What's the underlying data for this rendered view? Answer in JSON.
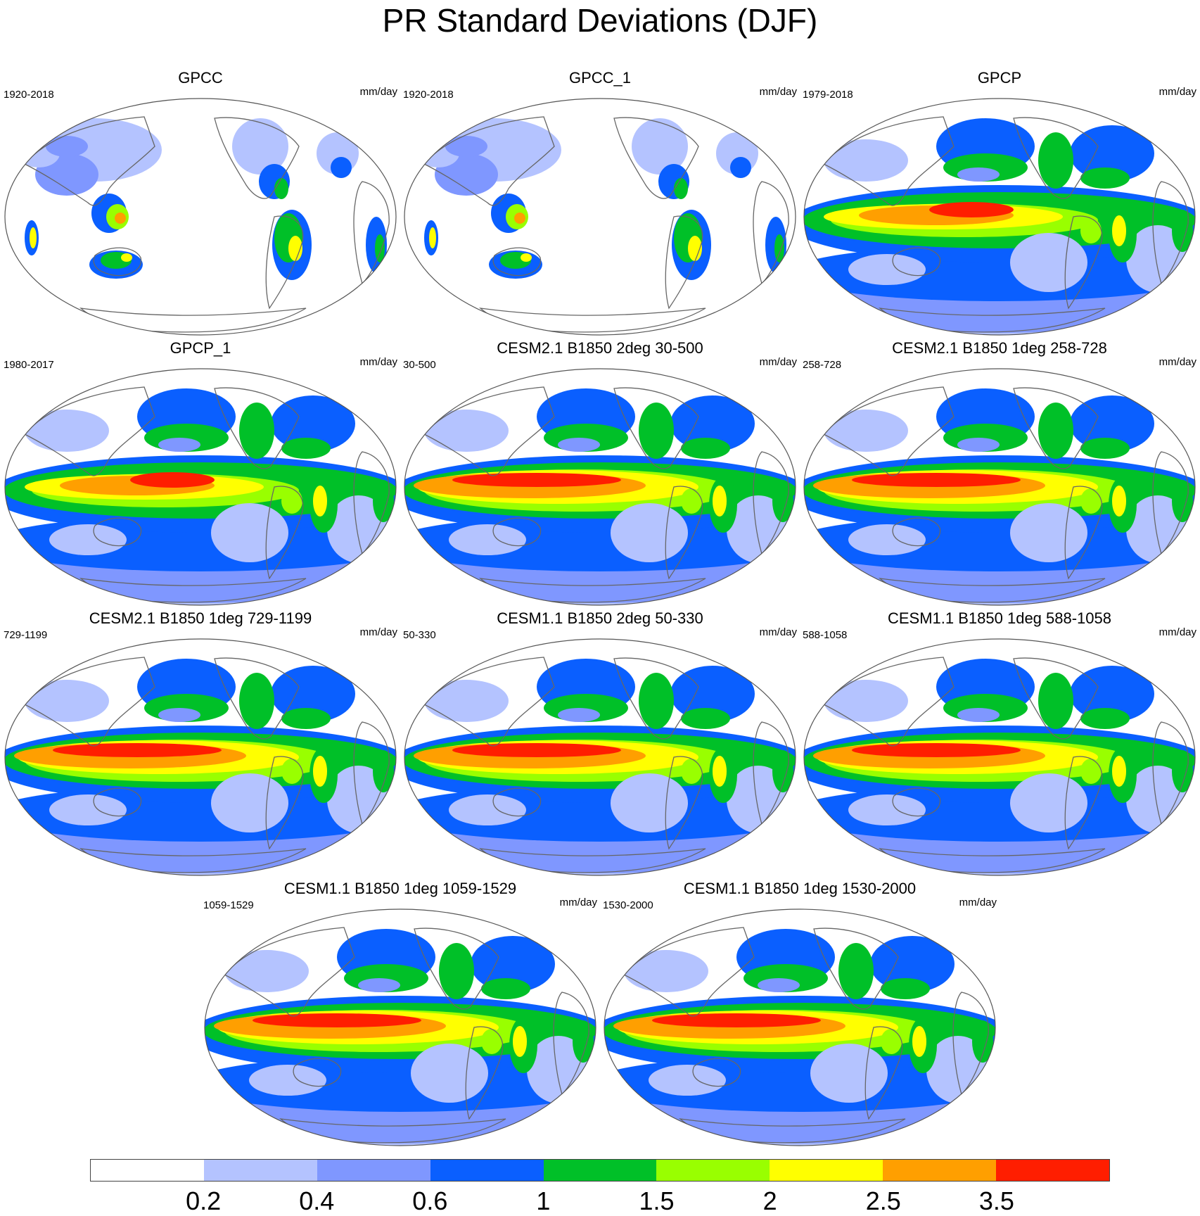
{
  "title": "PR Standard Deviations (DJF)",
  "units": "mm/day",
  "colorbar": {
    "colors": [
      "#ffffff",
      "#b4c3ff",
      "#7f97ff",
      "#0a5fff",
      "#00c028",
      "#99ff00",
      "#ffff00",
      "#ff9f00",
      "#ff1e00"
    ],
    "labels": [
      "0.2",
      "0.4",
      "0.6",
      "1",
      "1.5",
      "2",
      "2.5",
      "3.5"
    ]
  },
  "panels": [
    {
      "title": "GPCC",
      "period": "1920-2018",
      "kind": "land"
    },
    {
      "title": "GPCC_1",
      "period": "1920-2018",
      "kind": "land"
    },
    {
      "title": "GPCP",
      "period": "1979-2018",
      "kind": "obs"
    },
    {
      "title": "GPCP_1",
      "period": "1980-2017",
      "kind": "obs"
    },
    {
      "title": "CESM2.1 B1850 2deg 30-500",
      "period": "30-500",
      "kind": "model"
    },
    {
      "title": "CESM2.1 B1850 1deg 258-728",
      "period": "258-728",
      "kind": "model"
    },
    {
      "title": "CESM2.1 B1850 1deg 729-1199",
      "period": "729-1199",
      "kind": "model"
    },
    {
      "title": "CESM1.1 B1850 2deg 50-330",
      "period": "50-330",
      "kind": "model"
    },
    {
      "title": "CESM1.1 B1850 1deg 588-1058",
      "period": "588-1058",
      "kind": "model"
    },
    {
      "title": "CESM1.1 B1850 1deg 1059-1529",
      "period": "1059-1529",
      "kind": "model"
    },
    {
      "title": "CESM1.1 B1850 1deg 1530-2000",
      "period": "1530-2000",
      "kind": "model"
    }
  ]
}
